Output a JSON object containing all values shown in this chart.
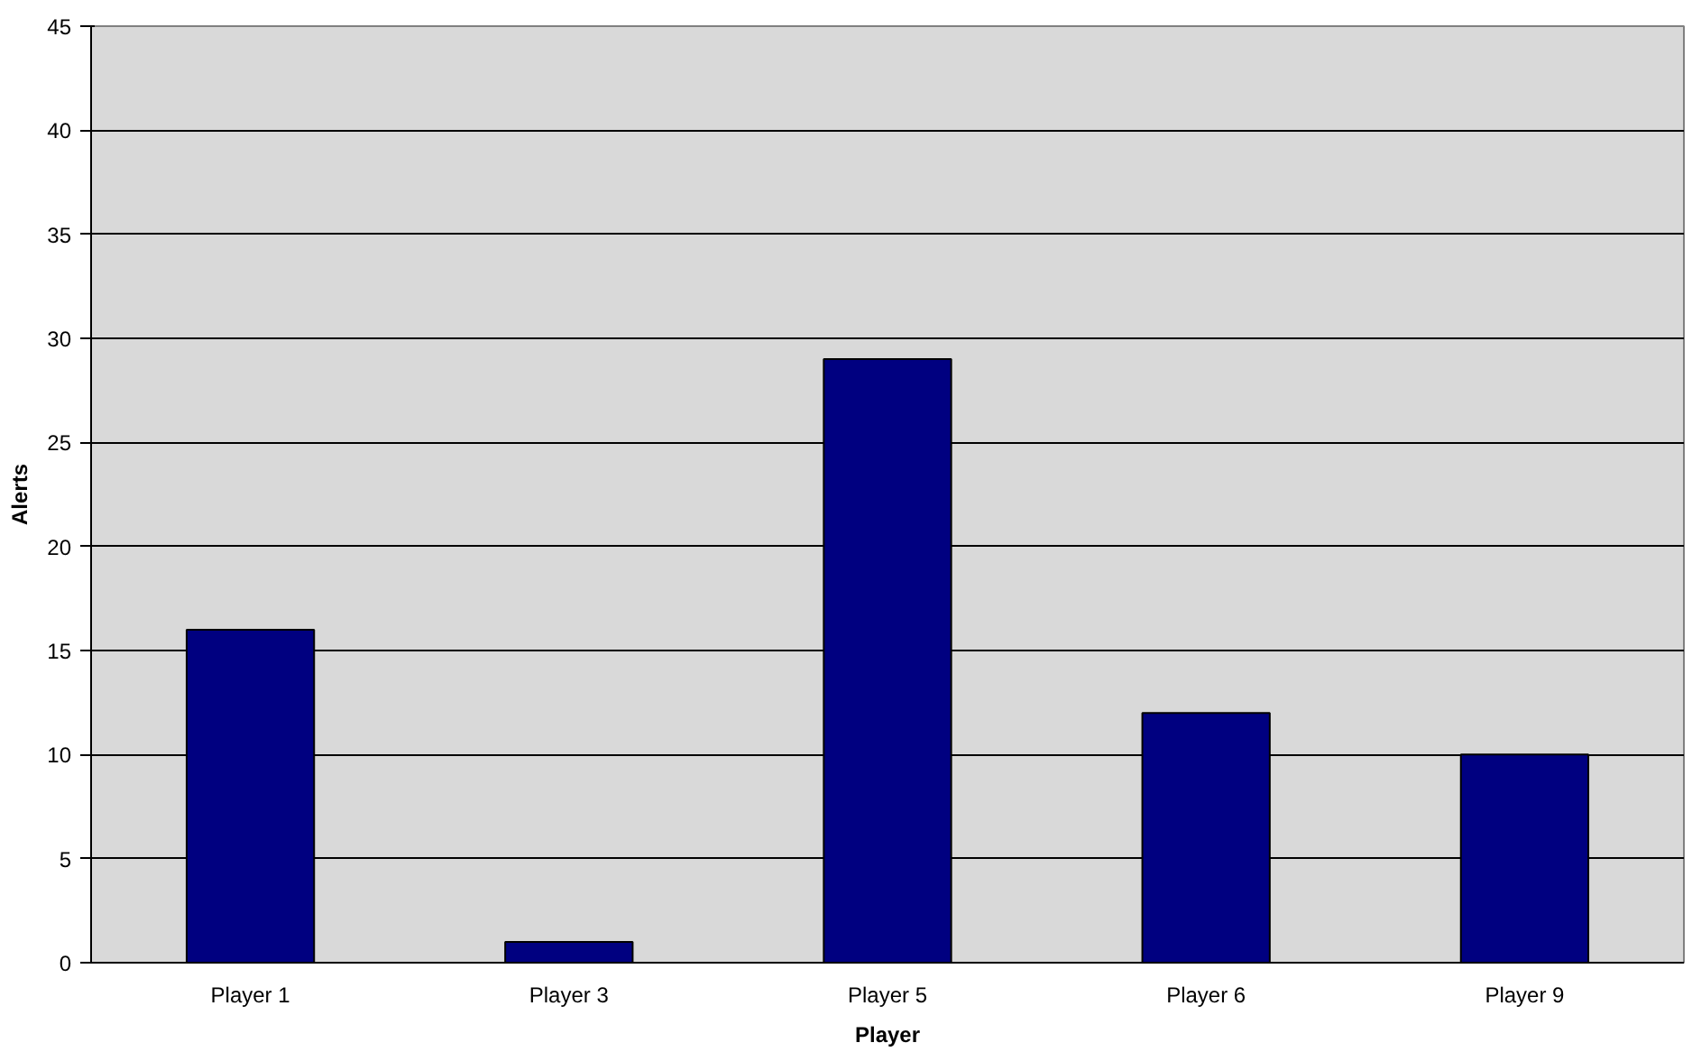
{
  "chart_data": {
    "type": "bar",
    "xlabel": "Player",
    "ylabel": "Alerts",
    "categories": [
      "Player 1",
      "Player 3",
      "Player 5",
      "Player 6",
      "Player 9"
    ],
    "values": [
      16,
      1,
      29,
      12,
      10
    ],
    "color": "#000080",
    "ylim": [
      0,
      45
    ],
    "yticks": [
      0,
      5,
      10,
      15,
      20,
      25,
      30,
      35,
      40,
      45
    ],
    "grid": "y"
  }
}
